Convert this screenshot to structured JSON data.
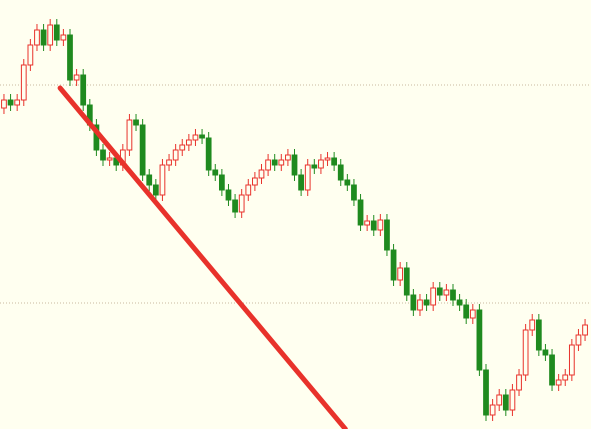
{
  "chart_data": {
    "type": "candlestick",
    "open": [
      321,
      329,
      324,
      329,
      364,
      384,
      399,
      384,
      404,
      389,
      394,
      349,
      354,
      324,
      304,
      279,
      269,
      271,
      264,
      279,
      309,
      304,
      254,
      244,
      234,
      264,
      269,
      279,
      284,
      289,
      294,
      291,
      259,
      254,
      239,
      229,
      217,
      234,
      244,
      251,
      259,
      269,
      264,
      269,
      274,
      254,
      239,
      264,
      261,
      269,
      271,
      264,
      249,
      244,
      229,
      204,
      208,
      199,
      209,
      179,
      149,
      161,
      134,
      119,
      129,
      124,
      141,
      134,
      139,
      129,
      124,
      111,
      119,
      59,
      14,
      24,
      34,
      19,
      39,
      54,
      99,
      109,
      79,
      74,
      44,
      49,
      54,
      84,
      94
    ],
    "high": [
      335,
      335,
      335,
      370,
      390,
      405,
      405,
      410,
      410,
      400,
      400,
      360,
      360,
      330,
      310,
      285,
      277,
      277,
      285,
      315,
      315,
      310,
      260,
      250,
      270,
      275,
      285,
      290,
      295,
      300,
      300,
      297,
      265,
      260,
      245,
      235,
      240,
      250,
      257,
      265,
      275,
      275,
      275,
      280,
      280,
      260,
      270,
      270,
      275,
      277,
      277,
      270,
      255,
      250,
      235,
      214,
      214,
      215,
      215,
      185,
      167,
      167,
      140,
      135,
      135,
      147,
      147,
      145,
      145,
      135,
      130,
      125,
      125,
      65,
      30,
      40,
      40,
      45,
      60,
      105,
      115,
      115,
      85,
      80,
      55,
      60,
      90,
      100,
      110
    ],
    "low": [
      315,
      318,
      318,
      323,
      358,
      378,
      378,
      378,
      383,
      383,
      343,
      343,
      318,
      298,
      273,
      263,
      263,
      258,
      258,
      273,
      298,
      248,
      238,
      228,
      228,
      258,
      263,
      273,
      278,
      283,
      285,
      253,
      248,
      233,
      223,
      211,
      211,
      228,
      238,
      245,
      253,
      258,
      258,
      263,
      248,
      233,
      233,
      255,
      255,
      263,
      258,
      243,
      238,
      223,
      198,
      198,
      193,
      193,
      173,
      143,
      143,
      128,
      113,
      113,
      118,
      118,
      128,
      128,
      123,
      118,
      105,
      105,
      53,
      8,
      8,
      18,
      13,
      13,
      33,
      48,
      93,
      73,
      68,
      38,
      38,
      43,
      48,
      78,
      88
    ],
    "close": [
      329,
      324,
      329,
      364,
      384,
      399,
      384,
      404,
      389,
      394,
      349,
      354,
      324,
      304,
      279,
      269,
      271,
      264,
      279,
      309,
      304,
      254,
      244,
      234,
      264,
      269,
      279,
      284,
      289,
      294,
      291,
      259,
      254,
      239,
      229,
      217,
      234,
      244,
      251,
      259,
      269,
      264,
      269,
      274,
      254,
      239,
      264,
      261,
      269,
      271,
      264,
      249,
      244,
      229,
      204,
      208,
      199,
      209,
      179,
      149,
      161,
      134,
      119,
      129,
      124,
      141,
      134,
      139,
      129,
      124,
      111,
      119,
      59,
      14,
      24,
      34,
      19,
      39,
      54,
      99,
      109,
      79,
      74,
      44,
      49,
      54,
      84,
      94,
      104
    ],
    "up_color": "#e8322b",
    "down_color": "#1f8a1f",
    "xlim": [
      -0.6,
      88.9
    ],
    "ylim": [
      0,
      429
    ],
    "grid_lines": [
      344,
      126
    ],
    "trendline": {
      "x": [
        8.5,
        51.7
      ],
      "y": [
        341,
        0
      ],
      "color": "#e8322b"
    }
  }
}
